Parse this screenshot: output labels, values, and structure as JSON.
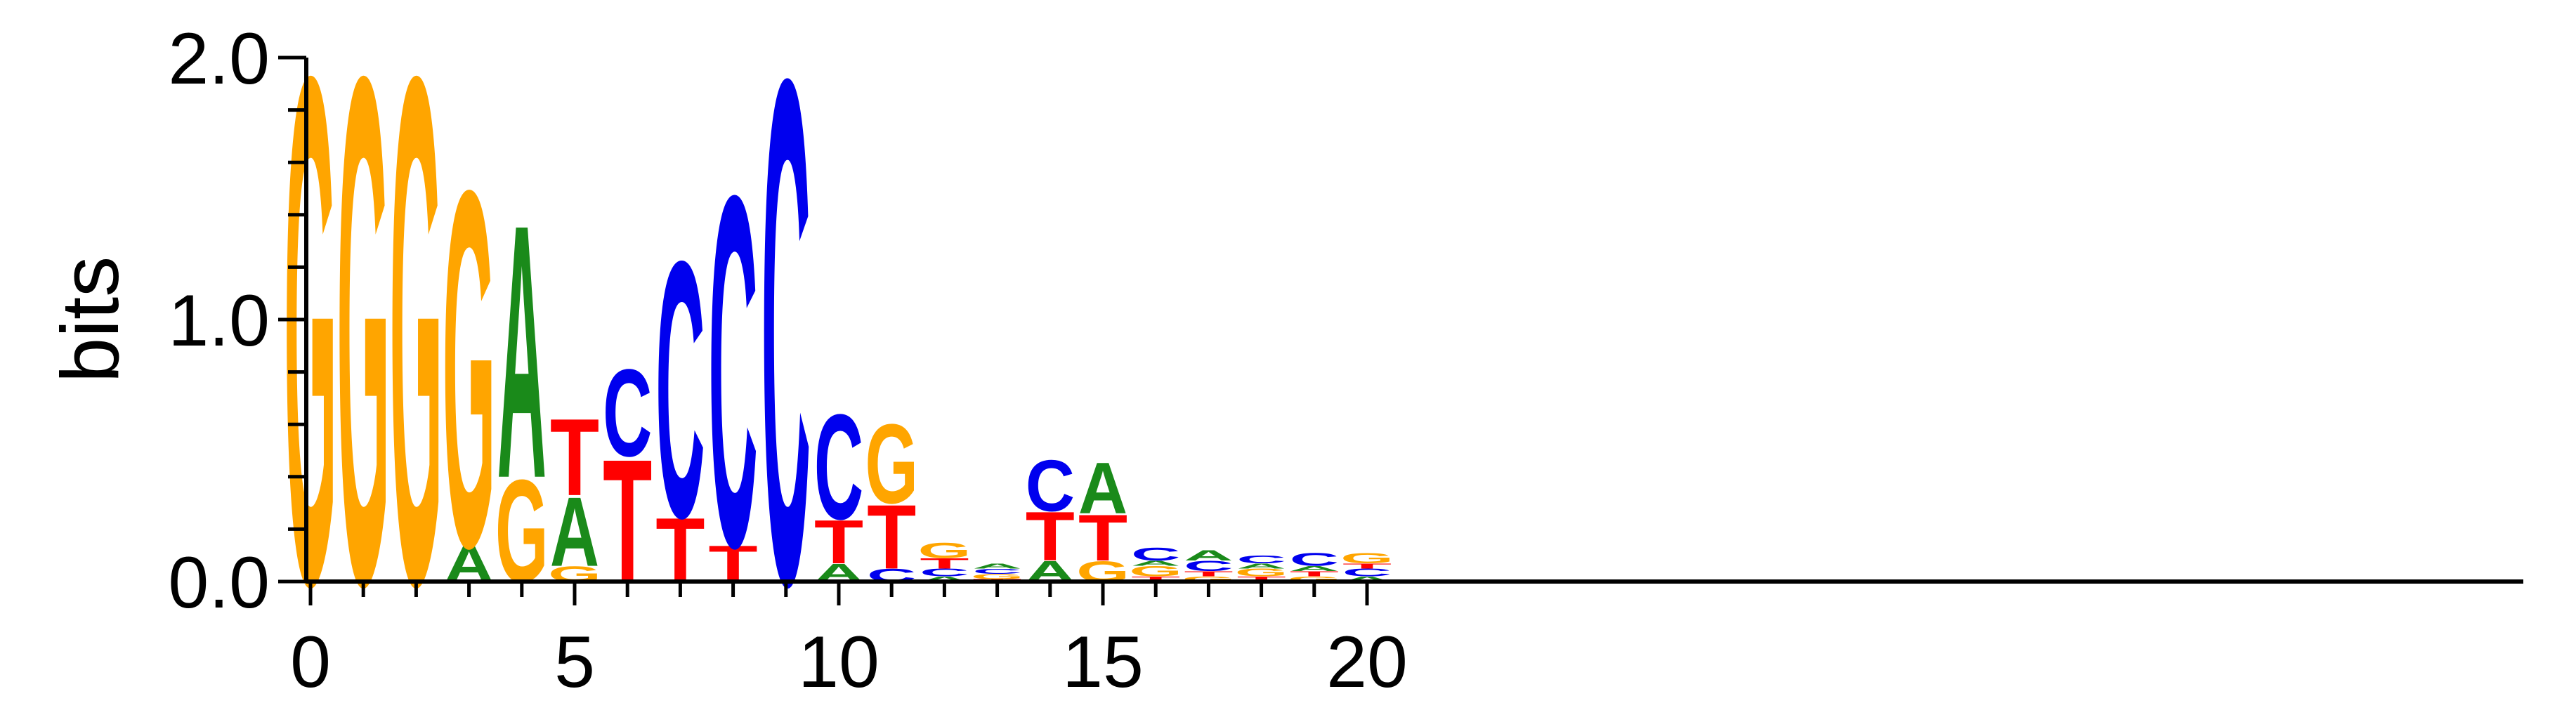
{
  "chart_data": {
    "type": "sequence-logo",
    "ylabel": "bits",
    "ylim": [
      0,
      2
    ],
    "xlim": [
      -0.5,
      20.5
    ],
    "y_ticks": [
      {
        "value": 0,
        "label": "0.0"
      },
      {
        "value": 1,
        "label": "1.0"
      },
      {
        "value": 2,
        "label": "2.0"
      }
    ],
    "x_ticks": [
      0,
      5,
      10,
      15,
      20
    ],
    "colors": {
      "A": "#1a8a1a",
      "C": "#0000ee",
      "G": "#ffa500",
      "T": "#ff0000"
    },
    "positions": [
      {
        "x": 0,
        "letters": [
          {
            "base": "G",
            "height": 1.98
          }
        ]
      },
      {
        "x": 1,
        "letters": [
          {
            "base": "G",
            "height": 1.98
          }
        ]
      },
      {
        "x": 2,
        "letters": [
          {
            "base": "G",
            "height": 1.98
          }
        ]
      },
      {
        "x": 3,
        "letters": [
          {
            "base": "A",
            "height": 0.14
          },
          {
            "base": "G",
            "height": 1.39
          }
        ]
      },
      {
        "x": 4,
        "letters": [
          {
            "base": "G",
            "height": 0.4
          },
          {
            "base": "A",
            "height": 0.99
          }
        ]
      },
      {
        "x": 5,
        "letters": [
          {
            "base": "G",
            "height": 0.06
          },
          {
            "base": "A",
            "height": 0.27
          },
          {
            "base": "T",
            "height": 0.3
          }
        ]
      },
      {
        "x": 6,
        "letters": [
          {
            "base": "T",
            "height": 0.48
          },
          {
            "base": "C",
            "height": 0.34
          }
        ]
      },
      {
        "x": 7,
        "letters": [
          {
            "base": "T",
            "height": 0.25
          },
          {
            "base": "C",
            "height": 1.0
          }
        ]
      },
      {
        "x": 8,
        "letters": [
          {
            "base": "T",
            "height": 0.14
          },
          {
            "base": "C",
            "height": 1.37
          }
        ]
      },
      {
        "x": 9,
        "letters": [
          {
            "base": "C",
            "height": 1.97
          }
        ]
      },
      {
        "x": 10,
        "letters": [
          {
            "base": "A",
            "height": 0.07
          },
          {
            "base": "T",
            "height": 0.17
          },
          {
            "base": "C",
            "height": 0.41
          }
        ]
      },
      {
        "x": 11,
        "letters": [
          {
            "base": "C",
            "height": 0.05
          },
          {
            "base": "T",
            "height": 0.25
          },
          {
            "base": "G",
            "height": 0.31
          }
        ]
      },
      {
        "x": 12,
        "letters": [
          {
            "base": "A",
            "height": 0.02
          },
          {
            "base": "C",
            "height": 0.03
          },
          {
            "base": "T",
            "height": 0.04
          },
          {
            "base": "G",
            "height": 0.06
          }
        ]
      },
      {
        "x": 13,
        "letters": [
          {
            "base": "T",
            "height": 0.01
          },
          {
            "base": "G",
            "height": 0.02
          },
          {
            "base": "C",
            "height": 0.02
          },
          {
            "base": "A",
            "height": 0.02
          }
        ]
      },
      {
        "x": 14,
        "letters": [
          {
            "base": "A",
            "height": 0.08
          },
          {
            "base": "T",
            "height": 0.19
          },
          {
            "base": "C",
            "height": 0.2
          }
        ]
      },
      {
        "x": 15,
        "letters": [
          {
            "base": "G",
            "height": 0.08
          },
          {
            "base": "T",
            "height": 0.18
          },
          {
            "base": "A",
            "height": 0.2
          }
        ]
      },
      {
        "x": 16,
        "letters": [
          {
            "base": "T",
            "height": 0.02
          },
          {
            "base": "G",
            "height": 0.04
          },
          {
            "base": "A",
            "height": 0.02
          },
          {
            "base": "C",
            "height": 0.05
          }
        ]
      },
      {
        "x": 17,
        "letters": [
          {
            "base": "G",
            "height": 0.02
          },
          {
            "base": "T",
            "height": 0.02
          },
          {
            "base": "C",
            "height": 0.04
          },
          {
            "base": "A",
            "height": 0.04
          }
        ]
      },
      {
        "x": 18,
        "letters": [
          {
            "base": "T",
            "height": 0.02
          },
          {
            "base": "G",
            "height": 0.03
          },
          {
            "base": "A",
            "height": 0.02
          },
          {
            "base": "C",
            "height": 0.03
          }
        ]
      },
      {
        "x": 19,
        "letters": [
          {
            "base": "G",
            "height": 0.02
          },
          {
            "base": "T",
            "height": 0.02
          },
          {
            "base": "A",
            "height": 0.02
          },
          {
            "base": "C",
            "height": 0.05
          }
        ]
      },
      {
        "x": 20,
        "letters": [
          {
            "base": "A",
            "height": 0.02
          },
          {
            "base": "C",
            "height": 0.03
          },
          {
            "base": "T",
            "height": 0.02
          },
          {
            "base": "G",
            "height": 0.04
          }
        ]
      }
    ]
  }
}
